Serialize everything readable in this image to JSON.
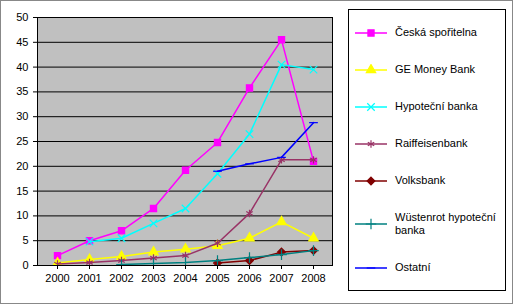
{
  "chart_data": {
    "type": "line",
    "categories": [
      "2000",
      "2001",
      "2002",
      "2003",
      "2004",
      "2005",
      "2006",
      "2007",
      "2008"
    ],
    "ylim": [
      0,
      50
    ],
    "yticks": [
      0,
      5,
      10,
      15,
      20,
      25,
      30,
      35,
      40,
      45,
      50
    ],
    "grid": true,
    "legend": "right",
    "series": [
      {
        "name": "Česká spořitelna",
        "color": "#ff00ff",
        "marker": "square",
        "values": [
          2,
          5,
          7,
          11.5,
          19.2,
          24.8,
          35.8,
          45.5,
          21
        ]
      },
      {
        "name": "GE Money Bank",
        "color": "#ffff00",
        "marker": "triangle",
        "values": [
          0.5,
          1.2,
          1.8,
          2.7,
          3.3,
          4,
          5.5,
          8.8,
          5.5
        ]
      },
      {
        "name": "Hypoteční banka",
        "color": "#00ffff",
        "marker": "x",
        "values": [
          null,
          4.8,
          5.5,
          8.5,
          11.5,
          18.5,
          26.5,
          40.5,
          39.5
        ]
      },
      {
        "name": "Raiffeisenbank",
        "color": "#993366",
        "marker": "asterisk",
        "values": [
          0.3,
          0.6,
          1,
          1.5,
          2,
          4.5,
          10.5,
          21.3,
          21.3
        ]
      },
      {
        "name": "Volksbank",
        "color": "#800000",
        "marker": "diamond",
        "values": [
          null,
          null,
          null,
          null,
          null,
          0.5,
          1,
          2.7,
          3
        ]
      },
      {
        "name": "Wüstenrot hypoteční banka",
        "color": "#008080",
        "marker": "plus",
        "values": [
          null,
          null,
          0.2,
          0.4,
          0.6,
          1,
          1.6,
          2.2,
          3
        ]
      },
      {
        "name": "Ostatní",
        "color": "#0000ff",
        "marker": "dash",
        "values": [
          null,
          null,
          null,
          null,
          null,
          19,
          20.5,
          21.8,
          28.8
        ]
      }
    ]
  }
}
